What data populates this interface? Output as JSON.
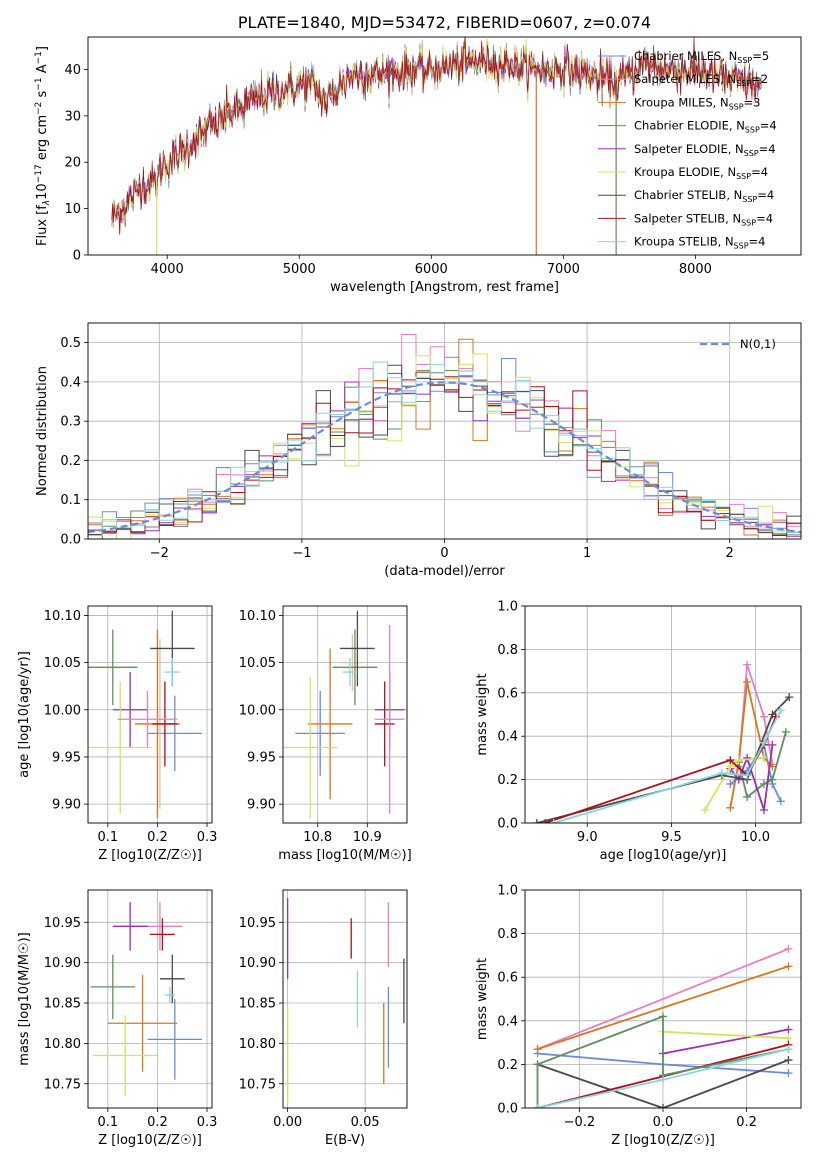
{
  "colors": [
    "#6a8cd8",
    "#e8bf9a",
    "#d7761e",
    "#5e9060",
    "#9a2fb6",
    "#d6e25e",
    "#4a4a4a",
    "#a8101c",
    "#88d6dc",
    "#e47ec6"
  ],
  "chart_data": [
    {
      "id": "spectrum",
      "type": "line",
      "title": "PLATE=1840, MJD=53472, FIBERID=0607, z=0.074",
      "xlabel": "wavelength [Angstrom, rest frame]",
      "ylabel": "Flux [f_λ10^-17 erg cm^-2 s^-1 A^-1]",
      "xlim": [
        3400,
        8800
      ],
      "ylim": [
        0,
        47
      ],
      "xticks": [
        4000,
        5000,
        6000,
        7000,
        8000
      ],
      "yticks": [
        0,
        10,
        20,
        30,
        40
      ],
      "grid": false,
      "legend_position": "top-right",
      "continuum": {
        "x": [
          3580,
          3700,
          3800,
          3920,
          3960,
          4100,
          4300,
          4500,
          4700,
          4900,
          5100,
          5200,
          5400,
          5600,
          5800,
          6000,
          6200,
          6400,
          6600,
          6800,
          7000,
          7200,
          7400,
          7600,
          7800,
          8000,
          8200,
          8400,
          8500
        ],
        "y": [
          8,
          11,
          15,
          16,
          19,
          22,
          27,
          31,
          34,
          36,
          37,
          33,
          39,
          39,
          40,
          40,
          41,
          42,
          41,
          40,
          40,
          39,
          37,
          41,
          40,
          40,
          38,
          37,
          36
        ]
      },
      "series": [
        {
          "name": "Chabrier MILES, N_SSP=5"
        },
        {
          "name": "Salpeter MILES, N_SSP=2"
        },
        {
          "name": "Kroupa MILES, N_SSP=3"
        },
        {
          "name": "Chabrier ELODIE, N_SSP=4"
        },
        {
          "name": "Salpeter ELODIE, N_SSP=4"
        },
        {
          "name": "Kroupa ELODIE, N_SSP=4"
        },
        {
          "name": "Chabrier STELIB, N_SSP=4"
        },
        {
          "name": "Salpeter STELIB, N_SSP=4"
        },
        {
          "name": "Kroupa STELIB, N_SSP=4"
        }
      ]
    },
    {
      "id": "residuals",
      "type": "line",
      "xlabel": "(data-model)/error",
      "ylabel": "Normed distribution",
      "xlim": [
        -2.5,
        2.5
      ],
      "ylim": [
        0,
        0.55
      ],
      "xticks": [
        -2,
        -1,
        0,
        1,
        2
      ],
      "yticks": [
        0.0,
        0.1,
        0.2,
        0.3,
        0.4,
        0.5
      ],
      "grid": true,
      "legend": "N(0,1)",
      "legend_position": "top-right"
    },
    {
      "id": "age_vs_Z",
      "type": "scatter",
      "xlabel": "Z [log10(Z/Z☉)]",
      "ylabel": "age [log10(age/yr)]",
      "xlim": [
        0.06,
        0.31
      ],
      "ylim": [
        9.88,
        10.11
      ],
      "xticks": [
        0.1,
        0.2,
        0.3
      ],
      "yticks": [
        9.9,
        9.95,
        10.0,
        10.05,
        10.1
      ],
      "grid": true,
      "points": [
        {
          "x": 0.235,
          "y": 9.975,
          "xerr": 0.055,
          "yerr": 0.04,
          "c": 0
        },
        {
          "x": 0.205,
          "y": 9.985,
          "xerr": 0.04,
          "yerr": 0.09,
          "c": 1
        },
        {
          "x": 0.2,
          "y": 9.985,
          "xerr": 0.045,
          "yerr": 0.1,
          "c": 2
        },
        {
          "x": 0.11,
          "y": 10.045,
          "xerr": 0.05,
          "yerr": 0.04,
          "c": 3
        },
        {
          "x": 0.145,
          "y": 10.0,
          "xerr": 0.035,
          "yerr": 0.04,
          "c": 4
        },
        {
          "x": 0.125,
          "y": 9.96,
          "xerr": 0.065,
          "yerr": 0.07,
          "c": 5
        },
        {
          "x": 0.23,
          "y": 10.065,
          "xerr": 0.045,
          "yerr": 0.04,
          "c": 6
        },
        {
          "x": 0.215,
          "y": 9.985,
          "xerr": 0.025,
          "yerr": 0.045,
          "c": 7
        },
        {
          "x": 0.23,
          "y": 10.04,
          "xerr": 0.015,
          "yerr": 0.015,
          "c": 8
        },
        {
          "x": 0.18,
          "y": 9.99,
          "xerr": 0.06,
          "yerr": 0.03,
          "c": 9
        }
      ]
    },
    {
      "id": "age_vs_mass",
      "type": "scatter",
      "xlabel": "mass [log10(M/M☉)]",
      "ylabel": "",
      "xlim": [
        10.73,
        10.98
      ],
      "ylim": [
        9.88,
        10.11
      ],
      "xticks": [
        10.8,
        10.9
      ],
      "yticks": [
        9.9,
        9.95,
        10.0,
        10.05,
        10.1
      ],
      "grid": true,
      "points": [
        {
          "x": 10.805,
          "y": 9.975,
          "xerr": 0.05,
          "yerr": 0.045,
          "c": 0
        },
        {
          "x": 10.87,
          "y": 10.05,
          "xerr": 0.02,
          "yerr": 0.03,
          "c": 1
        },
        {
          "x": 10.825,
          "y": 9.985,
          "xerr": 0.045,
          "yerr": 0.08,
          "c": 2
        },
        {
          "x": 10.875,
          "y": 10.045,
          "xerr": 0.045,
          "yerr": 0.04,
          "c": 3
        },
        {
          "x": 10.945,
          "y": 10.0,
          "xerr": 0.03,
          "yerr": 0.04,
          "c": 4
        },
        {
          "x": 10.785,
          "y": 9.96,
          "xerr": 0.055,
          "yerr": 0.075,
          "c": 5
        },
        {
          "x": 10.88,
          "y": 10.065,
          "xerr": 0.035,
          "yerr": 0.04,
          "c": 6
        },
        {
          "x": 10.935,
          "y": 9.985,
          "xerr": 0.02,
          "yerr": 0.045,
          "c": 7
        },
        {
          "x": 10.865,
          "y": 10.04,
          "xerr": 0.015,
          "yerr": 0.015,
          "c": 8
        },
        {
          "x": 10.945,
          "y": 9.99,
          "xerr": 0.03,
          "yerr": 0.1,
          "c": 9
        }
      ]
    },
    {
      "id": "weight_vs_age",
      "type": "line",
      "xlabel": "age [log10(age/yr)]",
      "ylabel": "mass weight",
      "xlim": [
        8.63,
        10.27
      ],
      "ylim": [
        0,
        1.0
      ],
      "xticks": [
        9.0,
        9.5,
        10.0
      ],
      "yticks": [
        0.0,
        0.2,
        0.4,
        0.6,
        0.8,
        1.0
      ],
      "grid": true,
      "series": [
        {
          "c": 0,
          "x": [
            9.85,
            9.95,
            10.05,
            10.1,
            10.15
          ],
          "y": [
            0.18,
            0.24,
            0.36,
            0.18,
            0.1
          ]
        },
        {
          "c": 9,
          "x": [
            9.9,
            9.95,
            10.05,
            10.1
          ],
          "y": [
            0.26,
            0.73,
            0.49,
            0.27
          ]
        },
        {
          "c": 2,
          "x": [
            9.85,
            9.9,
            9.95,
            10.05,
            10.1
          ],
          "y": [
            0.07,
            0.28,
            0.65,
            0.3,
            0.26
          ]
        },
        {
          "c": 3,
          "x": [
            9.9,
            9.95,
            10.05,
            10.1,
            10.18
          ],
          "y": [
            0.28,
            0.12,
            0.18,
            0.2,
            0.42
          ]
        },
        {
          "c": 4,
          "x": [
            9.85,
            9.9,
            9.95,
            10.05,
            10.1
          ],
          "y": [
            0.25,
            0.2,
            0.3,
            0.06,
            0.36
          ]
        },
        {
          "c": 5,
          "x": [
            9.7,
            9.85,
            9.9,
            10.05
          ],
          "y": [
            0.06,
            0.26,
            0.29,
            0.3
          ]
        },
        {
          "c": 6,
          "x": [
            8.7,
            9.8,
            9.95,
            10.1,
            10.2
          ],
          "y": [
            0.0,
            0.22,
            0.2,
            0.5,
            0.58
          ]
        },
        {
          "c": 7,
          "x": [
            8.75,
            9.85,
            9.95,
            10.05,
            10.12
          ],
          "y": [
            0.0,
            0.29,
            0.22,
            0.36,
            0.49
          ]
        },
        {
          "c": 8,
          "x": [
            8.8,
            9.8,
            9.95,
            10.05,
            10.15
          ],
          "y": [
            0.0,
            0.23,
            0.22,
            0.37,
            0.52
          ]
        }
      ]
    },
    {
      "id": "mass_vs_Z",
      "type": "scatter",
      "xlabel": "Z [log10(Z/Z☉)]",
      "ylabel": "mass [log10(M/M☉)]",
      "xlim": [
        0.06,
        0.31
      ],
      "ylim": [
        10.72,
        10.99
      ],
      "xticks": [
        0.1,
        0.2,
        0.3
      ],
      "yticks": [
        10.75,
        10.8,
        10.85,
        10.9,
        10.95
      ],
      "grid": true,
      "points": [
        {
          "x": 0.235,
          "y": 10.805,
          "xerr": 0.055,
          "yerr": 0.05,
          "c": 0
        },
        {
          "x": 0.205,
          "y": 10.945,
          "xerr": 0.045,
          "yerr": 0.03,
          "c": 9
        },
        {
          "x": 0.17,
          "y": 10.825,
          "xerr": 0.07,
          "yerr": 0.06,
          "c": 2
        },
        {
          "x": 0.11,
          "y": 10.87,
          "xerr": 0.045,
          "yerr": 0.04,
          "c": 3
        },
        {
          "x": 0.145,
          "y": 10.945,
          "xerr": 0.035,
          "yerr": 0.03,
          "c": 4
        },
        {
          "x": 0.135,
          "y": 10.785,
          "xerr": 0.065,
          "yerr": 0.05,
          "c": 5
        },
        {
          "x": 0.23,
          "y": 10.88,
          "xerr": 0.025,
          "yerr": 0.03,
          "c": 6
        },
        {
          "x": 0.21,
          "y": 10.935,
          "xerr": 0.025,
          "yerr": 0.02,
          "c": 7
        },
        {
          "x": 0.225,
          "y": 10.86,
          "xerr": 0.01,
          "yerr": 0.01,
          "c": 8
        }
      ]
    },
    {
      "id": "mass_vs_EBV",
      "type": "scatter",
      "xlabel": "E(B-V)",
      "ylabel": "",
      "xlim": [
        -0.003,
        0.077
      ],
      "ylim": [
        10.72,
        10.99
      ],
      "xticks": [
        0.0,
        0.05
      ],
      "yticks": [
        10.75,
        10.8,
        10.85,
        10.9,
        10.95
      ],
      "grid": true,
      "points": [
        {
          "x": 0.0,
          "y": 10.93,
          "xerr": 0,
          "yerr": 0.05,
          "c": 4
        },
        {
          "x": 0.0,
          "y": 10.785,
          "xerr": 0,
          "yerr": 0.06,
          "c": 5
        },
        {
          "x": 0.041,
          "y": 10.93,
          "xerr": 0,
          "yerr": 0.025,
          "c": 7
        },
        {
          "x": 0.045,
          "y": 10.855,
          "xerr": 0,
          "yerr": 0.035,
          "c": 8
        },
        {
          "x": 0.062,
          "y": 10.8,
          "xerr": 0,
          "yerr": 0.05,
          "c": 2
        },
        {
          "x": 0.065,
          "y": 10.935,
          "xerr": 0,
          "yerr": 0.04,
          "c": 9
        },
        {
          "x": 0.065,
          "y": 10.82,
          "xerr": 0,
          "yerr": 0.05,
          "c": 0
        },
        {
          "x": 0.075,
          "y": 10.865,
          "xerr": 0,
          "yerr": 0.04,
          "c": 6
        }
      ]
    },
    {
      "id": "weight_vs_Z",
      "type": "line",
      "xlabel": "Z [log10(Z/Z☉)]",
      "ylabel": "mass weight",
      "xlim": [
        -0.33,
        0.33
      ],
      "ylim": [
        0,
        1.0
      ],
      "xticks": [
        -0.2,
        0.0,
        0.2
      ],
      "yticks": [
        0.0,
        0.2,
        0.4,
        0.6,
        0.8,
        1.0
      ],
      "grid": true,
      "series": [
        {
          "c": 9,
          "x": [
            -0.3,
            0.3
          ],
          "y": [
            0.27,
            0.73
          ]
        },
        {
          "c": 2,
          "x": [
            -0.3,
            0.3
          ],
          "y": [
            0.27,
            0.65
          ]
        },
        {
          "c": 0,
          "x": [
            -0.3,
            0.0,
            0.3
          ],
          "y": [
            0.25,
            0.2,
            0.16
          ]
        },
        {
          "c": 4,
          "x": [
            0.0,
            0.3
          ],
          "y": [
            0.25,
            0.36
          ]
        },
        {
          "c": 5,
          "x": [
            0.0,
            0.3
          ],
          "y": [
            0.35,
            0.32
          ]
        },
        {
          "c": 6,
          "x": [
            -0.3,
            0.0,
            0.3
          ],
          "y": [
            0.2,
            0.0,
            0.22
          ]
        },
        {
          "c": 7,
          "x": [
            -0.3,
            0.3
          ],
          "y": [
            0.0,
            0.29
          ]
        },
        {
          "c": 3,
          "x": [
            -0.3,
            -0.3,
            0.0,
            0.0,
            0.3
          ],
          "y": [
            0.0,
            0.2,
            0.42,
            0.15,
            0.27
          ]
        },
        {
          "c": 8,
          "x": [
            -0.3,
            0.0,
            0.3
          ],
          "y": [
            0.0,
            0.13,
            0.27
          ]
        }
      ]
    }
  ]
}
